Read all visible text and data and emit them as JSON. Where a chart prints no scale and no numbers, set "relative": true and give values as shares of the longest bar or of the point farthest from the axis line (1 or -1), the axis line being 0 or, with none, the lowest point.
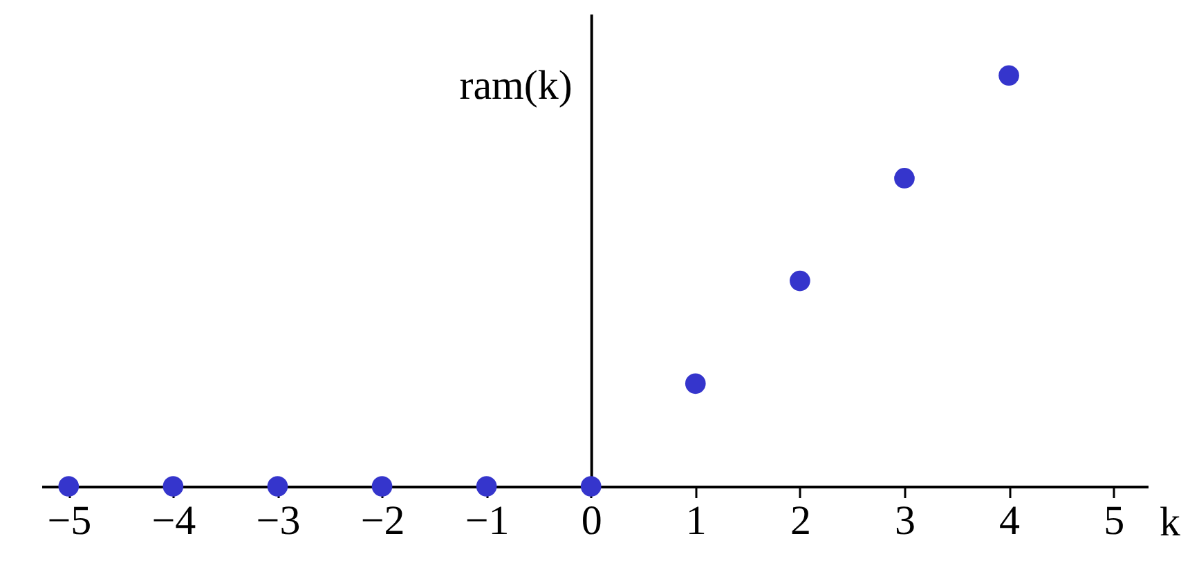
{
  "chart_data": {
    "type": "scatter",
    "xlabel": "k",
    "ylabel": "ram(k)",
    "x": [
      -5,
      -4,
      -3,
      -2,
      -1,
      0,
      1,
      2,
      3,
      4
    ],
    "series": [
      {
        "color": "#3535cc",
        "values": [
          0,
          0,
          0,
          0,
          0,
          0,
          0.25,
          0.5,
          0.75,
          1
        ]
      }
    ],
    "relative": true,
    "xlim": [
      -5.26,
      5.33
    ],
    "xticks": [
      -5,
      -4,
      -3,
      -2,
      -1,
      0,
      1,
      2,
      3,
      4,
      5
    ],
    "marker": "circle"
  }
}
